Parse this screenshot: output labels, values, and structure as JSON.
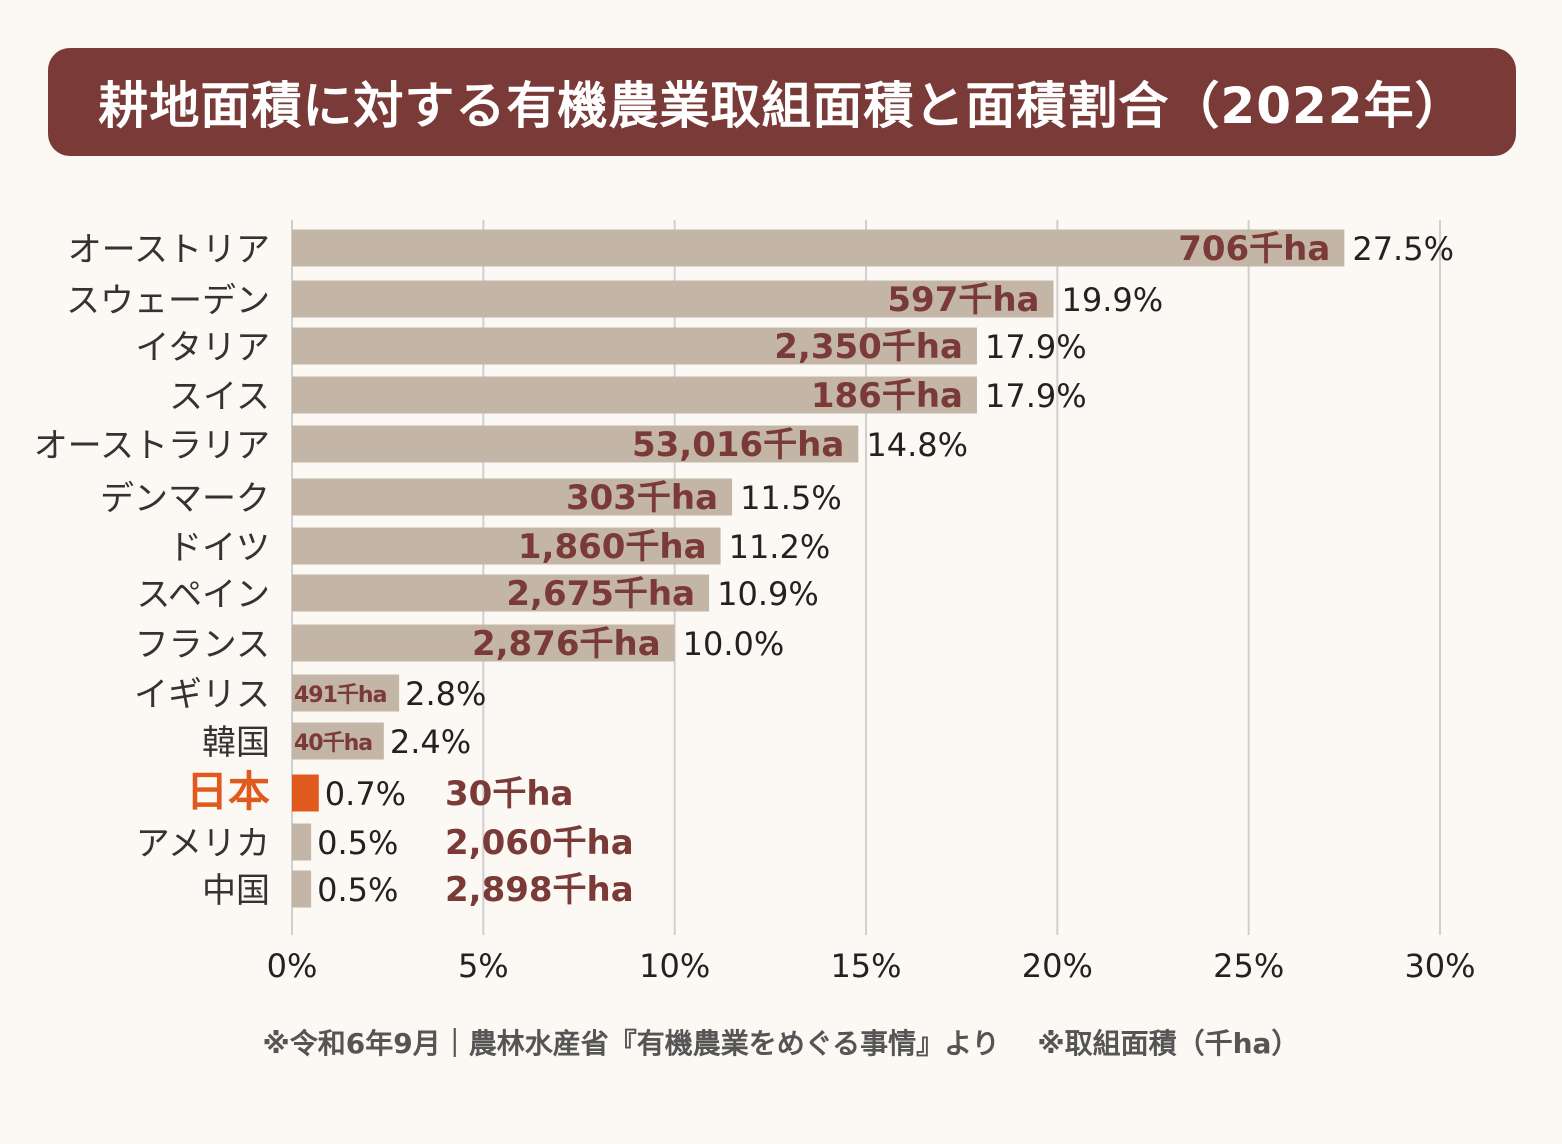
{
  "title": "耕地面積に対する有機農業取組面積と面積割合（2022年）",
  "footnote": {
    "source": "※令和6年9月｜農林水産省『有機農業をめぐる事情』より",
    "unit_note": "※取組面積（千ha）"
  },
  "colors": {
    "banner": "#7a3a37",
    "bar": "#c4b6a6",
    "bar_highlight": "#e05a1e",
    "area_label": "#7a3a37",
    "highlight_label": "#e05a1e",
    "text": "#222222",
    "grid": "#cfcfcf"
  },
  "chart_data": {
    "type": "bar",
    "orientation": "horizontal",
    "title": "耕地面積に対する有機農業取組面積と面積割合（2022年）",
    "xlabel": "",
    "ylabel": "",
    "xlim": [
      0,
      30
    ],
    "ticks": [
      "0%",
      "5%",
      "10%",
      "15%",
      "20%",
      "25%",
      "30%"
    ],
    "tick_values": [
      0,
      5,
      10,
      15,
      20,
      25,
      30
    ],
    "grid": true,
    "categories": [
      "オーストリア",
      "スウェーデン",
      "イタリア",
      "スイス",
      "オーストラリア",
      "デンマーク",
      "ドイツ",
      "スペイン",
      "フランス",
      "イギリス",
      "韓国",
      "日本",
      "アメリカ",
      "中国"
    ],
    "values": [
      27.5,
      19.9,
      17.9,
      17.9,
      14.8,
      11.5,
      11.2,
      10.9,
      10.0,
      2.8,
      2.4,
      0.7,
      0.5,
      0.5
    ],
    "percent_labels": [
      "27.5%",
      "19.9%",
      "17.9%",
      "17.9%",
      "14.8%",
      "11.5%",
      "11.2%",
      "10.9%",
      "10.0%",
      "2.8%",
      "2.4%",
      "0.7%",
      "0.5%",
      "0.5%"
    ],
    "area_labels": [
      "706千ha",
      "597千ha",
      "2,350千ha",
      "186千ha",
      "53,016千ha",
      "303千ha",
      "1,860千ha",
      "2,675千ha",
      "2,876千ha",
      "491千ha",
      "40千ha",
      "30千ha",
      "2,060千ha",
      "2,898千ha"
    ],
    "highlight": "日本"
  }
}
